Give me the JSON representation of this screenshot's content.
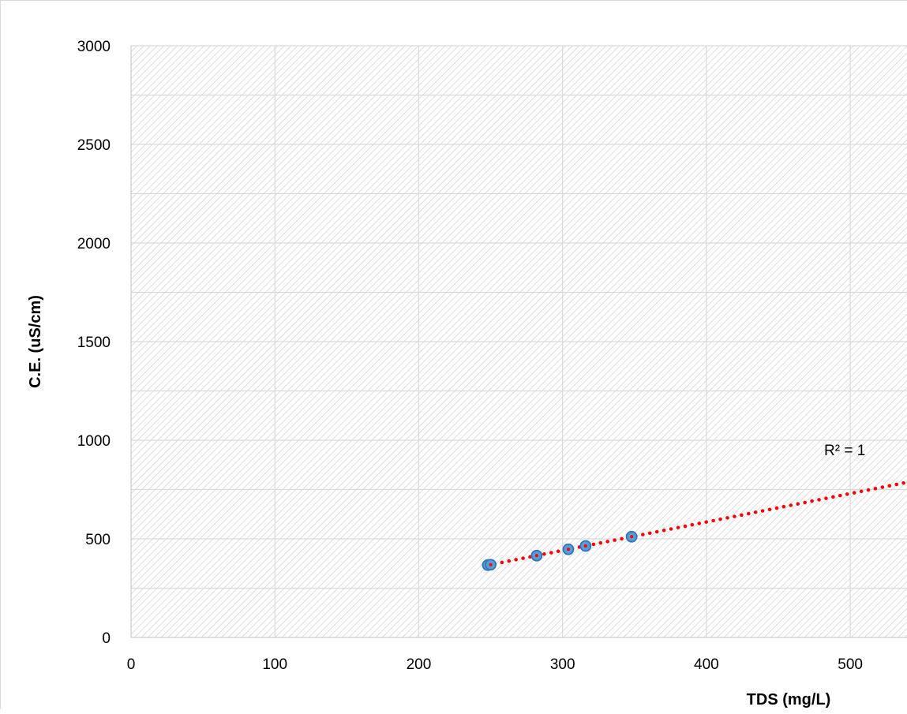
{
  "chart_data": {
    "type": "scatter",
    "title": "",
    "xlabel": "TDS (mg/L)",
    "ylabel": "C.E. (uS/cm)",
    "xlim": [
      0,
      540
    ],
    "ylim": [
      0,
      3000
    ],
    "x_ticks": [
      "0",
      "100",
      "200",
      "300",
      "400",
      "500"
    ],
    "y_ticks": [
      "0",
      "500",
      "1000",
      "1500",
      "2000",
      "2500",
      "3000"
    ],
    "grid": true,
    "background": "hatched",
    "series": [
      {
        "x": [
          248,
          250,
          282,
          304,
          316,
          348
        ],
        "y": [
          367,
          369,
          415,
          447,
          464,
          511
        ],
        "marker_color": "#5b9bd5",
        "marker_edge": "#2e75b6"
      }
    ],
    "trendline": {
      "kind": "linear",
      "color": "#ff0000",
      "style": "dotted",
      "x_range": [
        248,
        540
      ],
      "annotation": "R² = 1"
    }
  }
}
